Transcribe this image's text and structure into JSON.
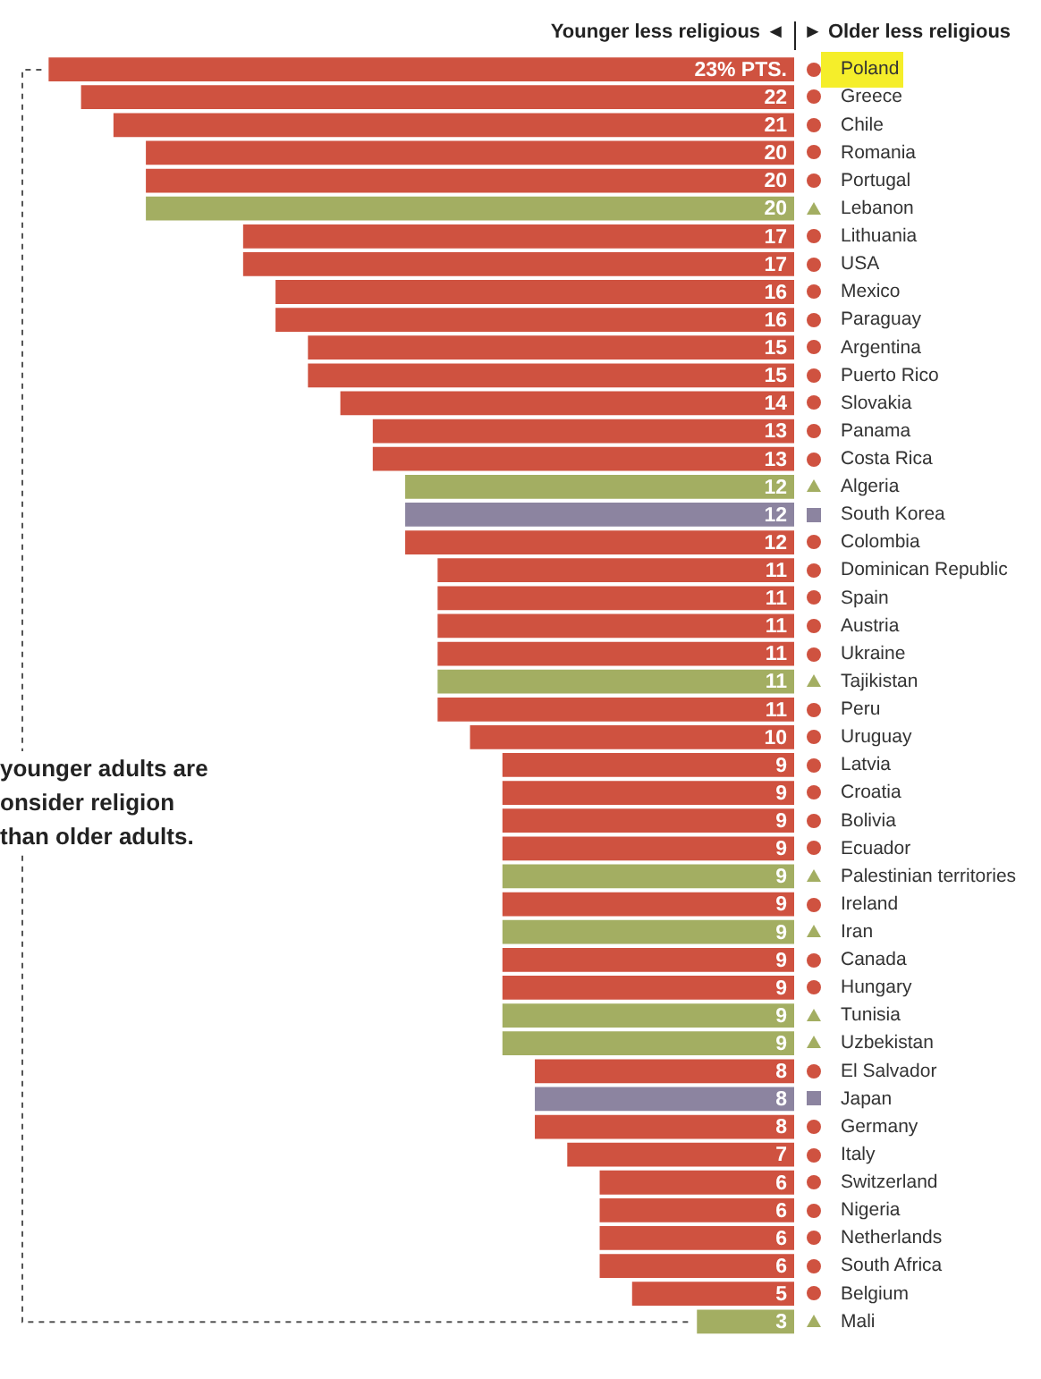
{
  "chart_data": {
    "type": "bar",
    "orientation": "horizontal",
    "tick_labels": "y",
    "xlim": [
      24.5,
      0
    ],
    "categories": [
      "Poland",
      "Greece",
      "Chile",
      "Romania",
      "Portugal",
      "Lebanon",
      "Lithuania",
      "USA",
      "Mexico",
      "Paraguay",
      "Argentina",
      "Puerto Rico",
      "Slovakia",
      "Panama",
      "Costa Rica",
      "Algeria",
      "South Korea",
      "Colombia",
      "Dominican Republic",
      "Spain",
      "Austria",
      "Ukraine",
      "Tajikistan",
      "Peru",
      "Uruguay",
      "Latvia",
      "Croatia",
      "Bolivia",
      "Ecuador",
      "Palestinian territories",
      "Ireland",
      "Iran",
      "Canada",
      "Hungary",
      "Tunisia",
      "Uzbekistan",
      "El Salvador",
      "Japan",
      "Germany",
      "Italy",
      "Switzerland",
      "Nigeria",
      "Netherlands",
      "South Africa",
      "Belgium",
      "Mali"
    ],
    "values": [
      23,
      22,
      21,
      20,
      20,
      20,
      17,
      17,
      16,
      16,
      15,
      15,
      14,
      13,
      13,
      12,
      12,
      12,
      11,
      11,
      11,
      11,
      11,
      11,
      10,
      9,
      9,
      9,
      9,
      9,
      9,
      9,
      9,
      9,
      9,
      9,
      8,
      8,
      8,
      7,
      6,
      6,
      6,
      6,
      5,
      3
    ],
    "value_labels": [
      "23% PTS.",
      "22",
      "21",
      "20",
      "20",
      "20",
      "17",
      "17",
      "16",
      "16",
      "15",
      "15",
      "14",
      "13",
      "13",
      "12",
      "12",
      "12",
      "11",
      "11",
      "11",
      "11",
      "11",
      "11",
      "10",
      "9",
      "9",
      "9",
      "9",
      "9",
      "9",
      "9",
      "9",
      "9",
      "9",
      "9",
      "8",
      "8",
      "8",
      "7",
      "6",
      "6",
      "6",
      "6",
      "5",
      "3"
    ],
    "colors": [
      "#cf5240",
      "#cf5240",
      "#cf5240",
      "#cf5240",
      "#cf5240",
      "#a3ae62",
      "#cf5240",
      "#cf5240",
      "#cf5240",
      "#cf5240",
      "#cf5240",
      "#cf5240",
      "#cf5240",
      "#cf5240",
      "#cf5240",
      "#a3ae62",
      "#8c84a0",
      "#cf5240",
      "#cf5240",
      "#cf5240",
      "#cf5240",
      "#cf5240",
      "#a3ae62",
      "#cf5240",
      "#cf5240",
      "#cf5240",
      "#cf5240",
      "#cf5240",
      "#cf5240",
      "#a3ae62",
      "#cf5240",
      "#a3ae62",
      "#cf5240",
      "#cf5240",
      "#a3ae62",
      "#a3ae62",
      "#cf5240",
      "#8c84a0",
      "#cf5240",
      "#cf5240",
      "#cf5240",
      "#cf5240",
      "#cf5240",
      "#cf5240",
      "#cf5240",
      "#a3ae62"
    ],
    "annotations": [
      "Younger less religious ◄",
      "► Older less religious",
      "younger adults are\nonsider religion\nthan older adults."
    ]
  }
}
